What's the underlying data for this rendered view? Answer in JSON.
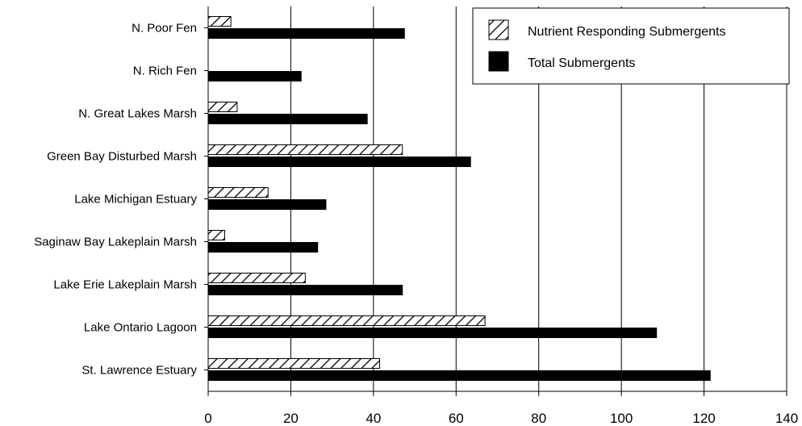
{
  "chart_data": {
    "type": "bar",
    "orientation": "horizontal",
    "categories": [
      "N. Poor Fen",
      "N. Rich Fen",
      "N. Great Lakes Marsh",
      "Green Bay Disturbed Marsh",
      "Lake Michigan Estuary",
      "Saginaw Bay Lakeplain Marsh",
      "Lake Erie Lakeplain Marsh",
      "Lake Ontario Lagoon",
      "St. Lawrence Estuary"
    ],
    "series": [
      {
        "name": "Nutrient Responding Submergents",
        "pattern": "hatched",
        "color": "#ffffff",
        "values": [
          5.5,
          0,
          7,
          47,
          14.5,
          4,
          23.5,
          67,
          41.5
        ]
      },
      {
        "name": "Total Submergents",
        "pattern": "solid",
        "color": "#000000",
        "values": [
          47.5,
          22.5,
          38.5,
          63.5,
          28.5,
          26.5,
          47,
          108.5,
          121.5
        ]
      }
    ],
    "x_ticks": [
      "0",
      "20",
      "40",
      "60",
      "80",
      "100",
      "120",
      "140"
    ],
    "xlim": [
      0,
      140
    ],
    "grid": "vertical",
    "legend_position": "top-right",
    "title": "",
    "xlabel": "",
    "ylabel": ""
  }
}
